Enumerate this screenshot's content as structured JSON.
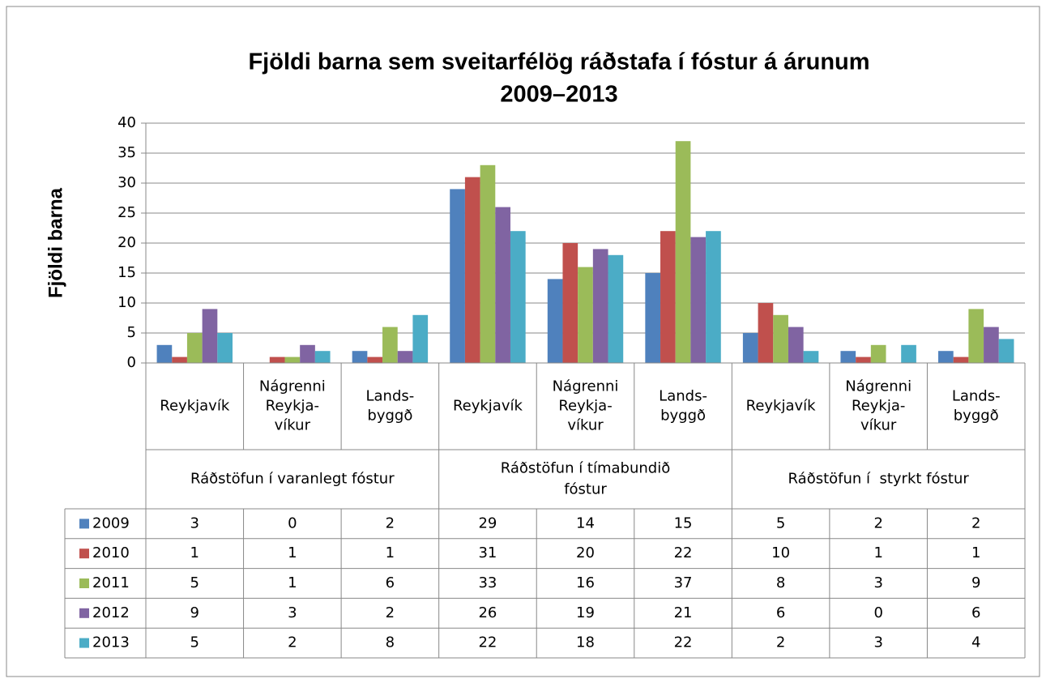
{
  "chart_data": {
    "type": "bar",
    "title": [
      "Fjöldi barna sem sveitarfélög ráðstafa í fóstur á árunum",
      "2009–2013"
    ],
    "y_label": "Fjöldi barna",
    "groups": [
      {
        "label": [
          "Ráðstöfun í varanlegt fóstur"
        ],
        "categories": [
          [
            "Reykjavík"
          ],
          [
            "Nágrenni",
            "Reykja-",
            "víkur"
          ],
          [
            "Lands-",
            "byggð"
          ]
        ]
      },
      {
        "label": [
          "Ráðstöfun í tímabundið",
          "fóstur"
        ],
        "categories": [
          [
            "Reykjavík"
          ],
          [
            "Nágrenni",
            "Reykja-",
            "víkur"
          ],
          [
            "Lands-",
            "byggð"
          ]
        ]
      },
      {
        "label": [
          "Ráðstöfun í  styrkt fóstur"
        ],
        "categories": [
          [
            "Reykjavík"
          ],
          [
            "Nágrenni",
            "Reykja-",
            "víkur"
          ],
          [
            "Lands-",
            "byggð"
          ]
        ]
      }
    ],
    "series": [
      {
        "name": "2009",
        "color": "#4f81bd",
        "values": [
          3,
          0,
          2,
          29,
          14,
          15,
          5,
          2,
          2
        ]
      },
      {
        "name": "2010",
        "color": "#c0504d",
        "values": [
          1,
          1,
          1,
          31,
          20,
          22,
          10,
          1,
          1
        ]
      },
      {
        "name": "2011",
        "color": "#9bbb59",
        "values": [
          5,
          1,
          6,
          33,
          16,
          37,
          8,
          3,
          9
        ]
      },
      {
        "name": "2012",
        "color": "#8064a2",
        "values": [
          9,
          3,
          2,
          26,
          19,
          21,
          6,
          0,
          6
        ]
      },
      {
        "name": "2013",
        "color": "#4bacc6",
        "values": [
          5,
          2,
          8,
          22,
          18,
          22,
          2,
          3,
          4
        ]
      }
    ],
    "ylim": [
      0,
      40
    ],
    "yticks": [
      0,
      5,
      10,
      15,
      20,
      25,
      30,
      35,
      40
    ],
    "grid": true,
    "data_table": true
  }
}
